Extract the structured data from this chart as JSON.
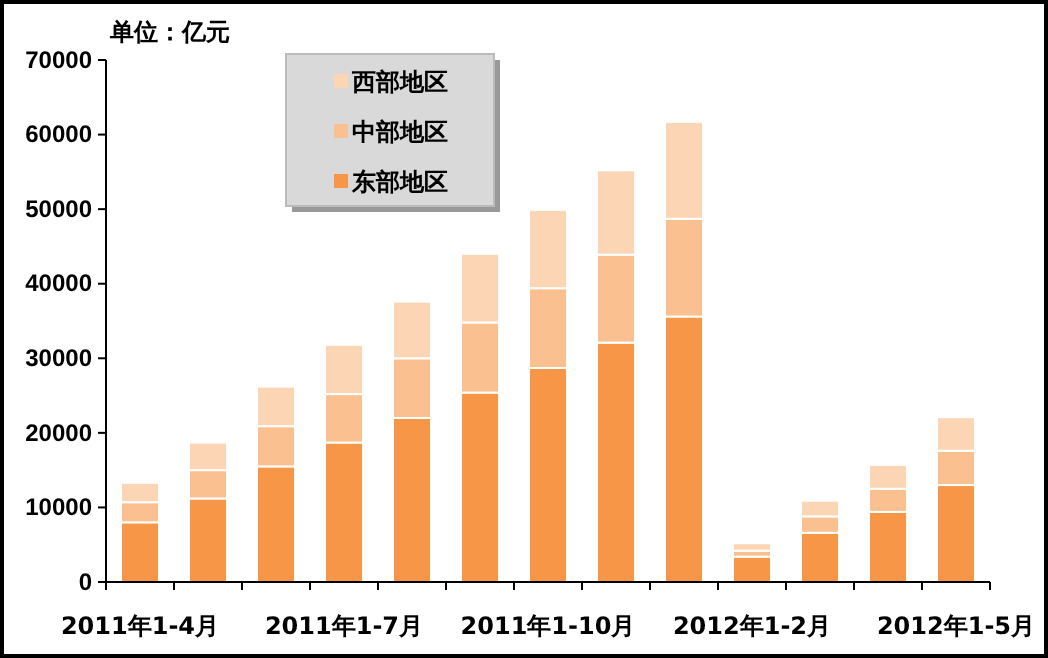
{
  "chart_data": {
    "type": "bar",
    "stacked": true,
    "ylabel": "单位：亿元",
    "categories": [
      "2011年1-4月",
      null,
      null,
      "2011年1-7月",
      null,
      null,
      "2011年1-10月",
      null,
      null,
      "2012年1-2月",
      null,
      null,
      "2012年1-5月"
    ],
    "series": [
      {
        "name": "东部地区",
        "color": "#f79646",
        "values": [
          8000,
          11200,
          15500,
          18700,
          22000,
          25400,
          28700,
          32100,
          35600,
          3400,
          6600,
          9400,
          13000
        ]
      },
      {
        "name": "中部地区",
        "color": "#fac090",
        "values": [
          2700,
          3800,
          5400,
          6500,
          8000,
          9400,
          10700,
          11800,
          13100,
          800,
          2200,
          3100,
          4600
        ]
      },
      {
        "name": "西部地区",
        "color": "#fcd5b5",
        "values": [
          2600,
          3700,
          5300,
          6600,
          7600,
          9200,
          10500,
          11300,
          13000,
          1000,
          2100,
          3200,
          4500
        ]
      }
    ],
    "ylim": [
      0,
      70000
    ],
    "yticks": [
      0,
      10000,
      20000,
      30000,
      40000,
      50000,
      60000,
      70000
    ],
    "grid": false,
    "legend": "top left"
  }
}
